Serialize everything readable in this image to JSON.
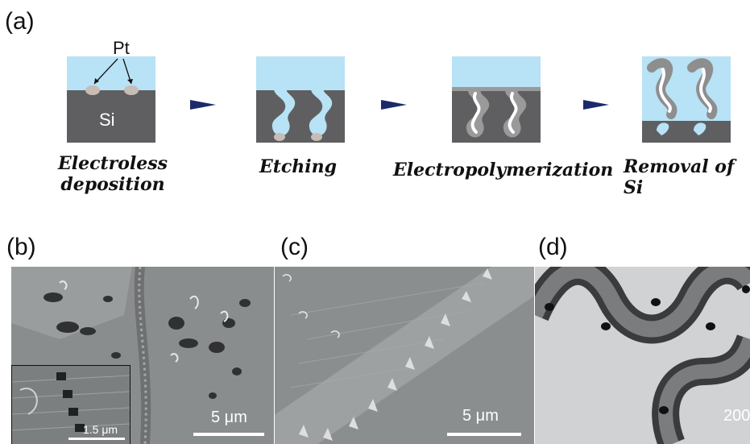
{
  "panels": {
    "a": "(a)",
    "b": "(b)",
    "c": "(c)",
    "d": "(d)"
  },
  "schematic": {
    "pt_label": "Pt",
    "si_label": "Si",
    "steps": [
      {
        "title_line1": "Electroless",
        "title_line2": "deposition"
      },
      {
        "title_line1": "Etching",
        "title_line2": ""
      },
      {
        "title_line1": "Electropolymerization",
        "title_line2": ""
      },
      {
        "title_line1": "Removal of Si",
        "title_line2": ""
      }
    ]
  },
  "images": {
    "b_scale": "5 μm",
    "b_inset_scale": "1.5 μm",
    "c_scale": "5 μm",
    "d_scale": "200"
  },
  "colors": {
    "water": "#b8e2f5",
    "silicon": "#5f5f61",
    "arrow": "#1b2a6b",
    "polymer": "#9a9a9a"
  }
}
